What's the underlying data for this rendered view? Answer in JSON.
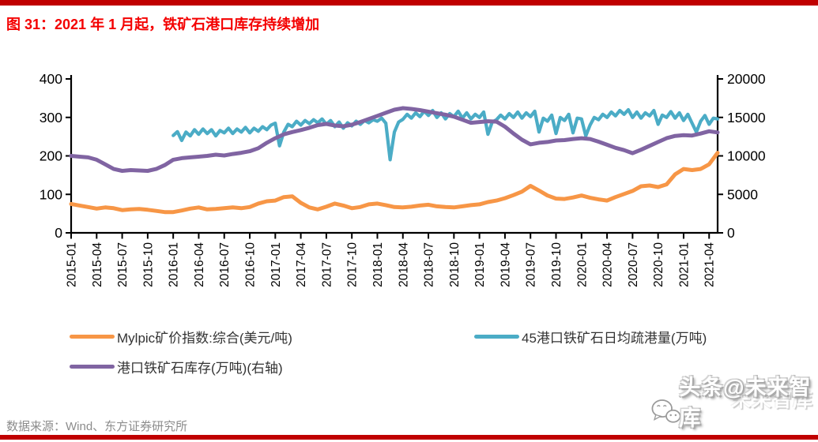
{
  "header": {
    "title": "图 31：2021 年 1 月起，铁矿石港口库存持续增加"
  },
  "footer": {
    "source": "数据来源：Wind、东方证券研究所"
  },
  "watermark": {
    "main": "头条@未来智库",
    "ghost": "未来智库"
  },
  "colors": {
    "accent_bar": "#c00000",
    "title_red": "#f40000",
    "orange_series": "#F79646",
    "teal_series": "#4BACC6",
    "purple_series": "#8064A2",
    "source_text": "#8c8c8c"
  },
  "chart_data": {
    "type": "line",
    "title": "图 31：2021 年 1 月起，铁矿石港口库存持续增加",
    "grid": false,
    "legend_position": "bottom",
    "x_axis": {
      "unit": "months since 2015-01",
      "range_months": [
        0,
        76
      ],
      "tick_step_months": 3,
      "tick_labels": [
        "2015-01",
        "2015-04",
        "2015-07",
        "2015-10",
        "2016-01",
        "2016-04",
        "2016-07",
        "2016-10",
        "2017-01",
        "2017-04",
        "2017-07",
        "2017-10",
        "2018-01",
        "2018-04",
        "2018-07",
        "2018-10",
        "2019-01",
        "2019-04",
        "2019-07",
        "2019-10",
        "2020-01",
        "2020-04",
        "2020-07",
        "2020-10",
        "2021-01",
        "2021-04"
      ]
    },
    "left_axis": {
      "range": [
        0,
        400
      ],
      "ticks": [
        0,
        100,
        200,
        300,
        400
      ]
    },
    "right_axis": {
      "range": [
        0,
        20000
      ],
      "ticks": [
        0,
        5000,
        10000,
        15000,
        20000
      ]
    },
    "series": [
      {
        "name": "Mylpic矿价指数:综合(美元/吨)",
        "color": "#F79646",
        "axis": "left",
        "width": 5,
        "start_month": 0,
        "step": 1,
        "values": [
          75,
          71,
          67,
          63,
          66,
          64,
          59,
          61,
          62,
          60,
          57,
          54,
          54,
          58,
          63,
          66,
          61,
          62,
          64,
          66,
          64,
          67,
          76,
          82,
          84,
          93,
          95,
          78,
          66,
          61,
          68,
          76,
          71,
          64,
          67,
          74,
          76,
          72,
          67,
          66,
          68,
          71,
          73,
          69,
          67,
          66,
          69,
          72,
          74,
          80,
          84,
          90,
          98,
          107,
          122,
          110,
          97,
          89,
          88,
          92,
          97,
          91,
          87,
          84,
          93,
          101,
          109,
          121,
          123,
          119,
          126,
          152,
          166,
          163,
          166,
          178,
          208
        ]
      },
      {
        "name": "45港口铁矿石日均疏港量(万吨)",
        "color": "#4BACC6",
        "axis": "left",
        "width": 4.2,
        "start_month": 12,
        "step": 0.5,
        "values": [
          253,
          263,
          240,
          262,
          252,
          268,
          256,
          270,
          258,
          268,
          252,
          266,
          260,
          272,
          258,
          270,
          262,
          274,
          260,
          272,
          264,
          276,
          268,
          280,
          285,
          226,
          262,
          282,
          276,
          290,
          280,
          292,
          284,
          294,
          286,
          296,
          282,
          292,
          276,
          288,
          272,
          286,
          278,
          290,
          282,
          292,
          286,
          294,
          290,
          298,
          285,
          190,
          262,
          288,
          295,
          308,
          298,
          312,
          302,
          316,
          305,
          318,
          300,
          312,
          296,
          310,
          302,
          316,
          298,
          312,
          296,
          308,
          300,
          314,
          256,
          288,
          294,
          306,
          296,
          310,
          300,
          314,
          298,
          312,
          302,
          316,
          262,
          298,
          290,
          306,
          258,
          300,
          292,
          308,
          260,
          298,
          296,
          252,
          280,
          300,
          294,
          308,
          300,
          314,
          304,
          318,
          308,
          320,
          300,
          314,
          298,
          312,
          304,
          318,
          282,
          306,
          300,
          315,
          298,
          312,
          292,
          308,
          285,
          262,
          290,
          305,
          282,
          298,
          296
        ]
      },
      {
        "name": "港口铁矿石库存(万吨)(右轴)",
        "color": "#8064A2",
        "axis": "right",
        "width": 5,
        "start_month": 0,
        "step": 1,
        "values": [
          10000,
          9900,
          9800,
          9500,
          8900,
          8300,
          8050,
          8150,
          8100,
          8050,
          8300,
          8800,
          9500,
          9700,
          9800,
          9900,
          10000,
          10150,
          10050,
          10250,
          10400,
          10600,
          11000,
          11700,
          12300,
          12800,
          13100,
          13350,
          13650,
          14000,
          14150,
          13950,
          13850,
          14050,
          14400,
          14800,
          15200,
          15600,
          16000,
          16200,
          16100,
          15950,
          15750,
          15550,
          15350,
          15100,
          14700,
          14300,
          14400,
          14500,
          14450,
          13800,
          12900,
          12100,
          11500,
          11700,
          11800,
          12000,
          12050,
          12200,
          12300,
          12200,
          11850,
          11450,
          11050,
          10750,
          10350,
          10800,
          11300,
          11800,
          12300,
          12600,
          12700,
          12650,
          12900,
          13200,
          13050
        ]
      }
    ]
  }
}
